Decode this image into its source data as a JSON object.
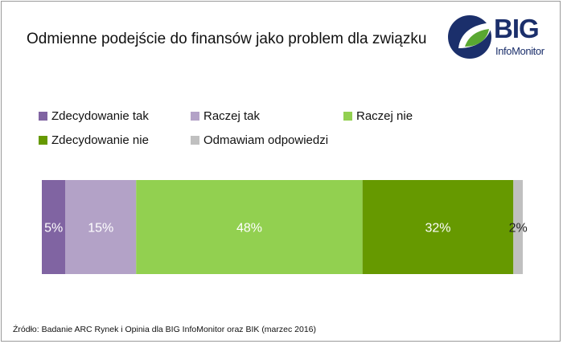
{
  "title": "Odmienne podejście do finansów jako problem dla związku",
  "logo": {
    "brand": "BIG",
    "sub": "InfoMonitor",
    "colors": {
      "navy": "#1b2f6b",
      "green": "#5aa832"
    }
  },
  "source": "Źródło: Badanie ARC Rynek i Opinia dla BIG InfoMonitor oraz BIK (marzec 2016)",
  "chart_data": {
    "type": "bar",
    "orientation": "horizontal-stacked-100",
    "legend_position": "top",
    "series": [
      {
        "name": "Zdecydowanie tak",
        "value": 5,
        "label": "5%",
        "color": "#8064a2"
      },
      {
        "name": "Raczej tak",
        "value": 15,
        "label": "15%",
        "color": "#b3a2c7"
      },
      {
        "name": "Raczej nie",
        "value": 48,
        "label": "48%",
        "color": "#92d050"
      },
      {
        "name": "Zdecydowanie nie",
        "value": 32,
        "label": "32%",
        "color": "#669900"
      },
      {
        "name": "Odmawiam odpowiedzi",
        "value": 2,
        "label": "2%",
        "color": "#c0c0c0"
      }
    ]
  }
}
